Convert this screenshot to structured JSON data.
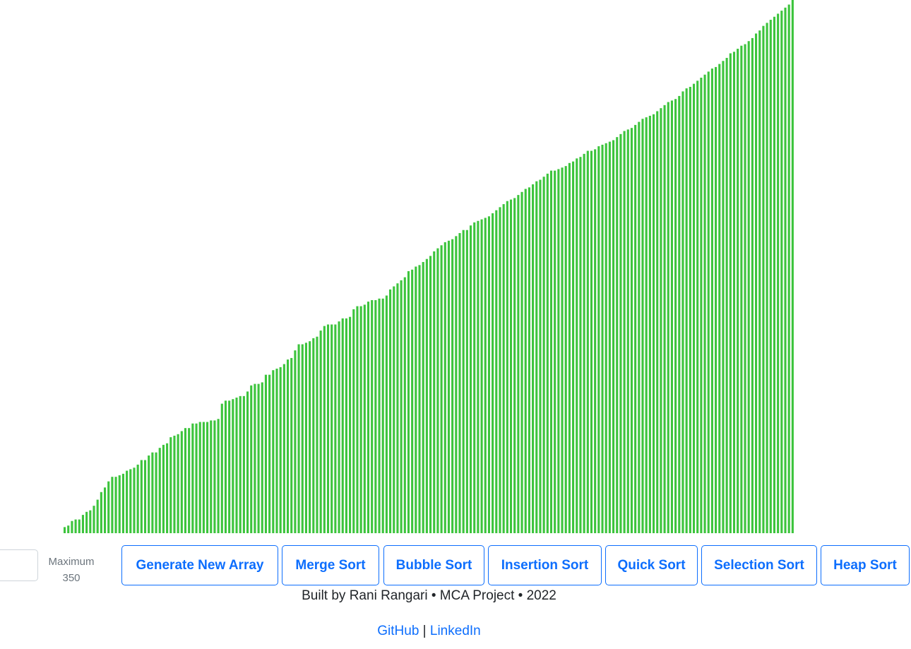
{
  "colors": {
    "bar": "#3cc43c",
    "accent": "#0d6efd",
    "muted": "#6c757d",
    "text": "#212529"
  },
  "chart_data": {
    "type": "bar",
    "count": 200,
    "ylim": [
      0,
      350
    ],
    "values": [
      4,
      5,
      8,
      9,
      9,
      12,
      14,
      15,
      18,
      22,
      27,
      30,
      34,
      37,
      37,
      38,
      39,
      41,
      42,
      43,
      45,
      48,
      48,
      51,
      53,
      53,
      56,
      58,
      59,
      63,
      64,
      65,
      67,
      69,
      69,
      72,
      72,
      73,
      73,
      73,
      74,
      74,
      75,
      85,
      87,
      87,
      88,
      89,
      90,
      90,
      93,
      97,
      98,
      98,
      99,
      104,
      104,
      107,
      108,
      109,
      111,
      114,
      115,
      120,
      124,
      124,
      125,
      126,
      128,
      129,
      133,
      136,
      137,
      137,
      137,
      139,
      141,
      141,
      142,
      147,
      149,
      149,
      150,
      152,
      153,
      153,
      154,
      154,
      156,
      160,
      162,
      164,
      166,
      168,
      172,
      173,
      175,
      176,
      178,
      180,
      182,
      185,
      187,
      189,
      191,
      192,
      193,
      195,
      197,
      199,
      199,
      202,
      204,
      205,
      206,
      207,
      208,
      210,
      212,
      214,
      216,
      218,
      219,
      220,
      222,
      224,
      226,
      227,
      229,
      231,
      232,
      234,
      236,
      238,
      238,
      239,
      240,
      241,
      243,
      244,
      246,
      247,
      249,
      251,
      251,
      252,
      254,
      255,
      256,
      257,
      258,
      260,
      262,
      264,
      265,
      266,
      268,
      270,
      272,
      273,
      274,
      275,
      277,
      279,
      281,
      283,
      284,
      285,
      287,
      290,
      292,
      293,
      295,
      297,
      299,
      301,
      303,
      305,
      306,
      308,
      310,
      312,
      315,
      316,
      318,
      320,
      321,
      323,
      325,
      328,
      330,
      333,
      335,
      337,
      339,
      341,
      343,
      345,
      347,
      350
    ]
  },
  "controls": {
    "array_size_value": "",
    "max_label": "Maximum",
    "max_value": "350"
  },
  "buttons": {
    "generate": "Generate New Array",
    "merge": "Merge Sort",
    "bubble": "Bubble Sort",
    "insertion": "Insertion Sort",
    "quick": "Quick Sort",
    "selection": "Selection Sort",
    "heap": "Heap Sort"
  },
  "footer": {
    "credit": "Built by Rani Rangari • MCA Project • 2022",
    "github": "GitHub",
    "separator": " | ",
    "linkedin": "LinkedIn"
  }
}
